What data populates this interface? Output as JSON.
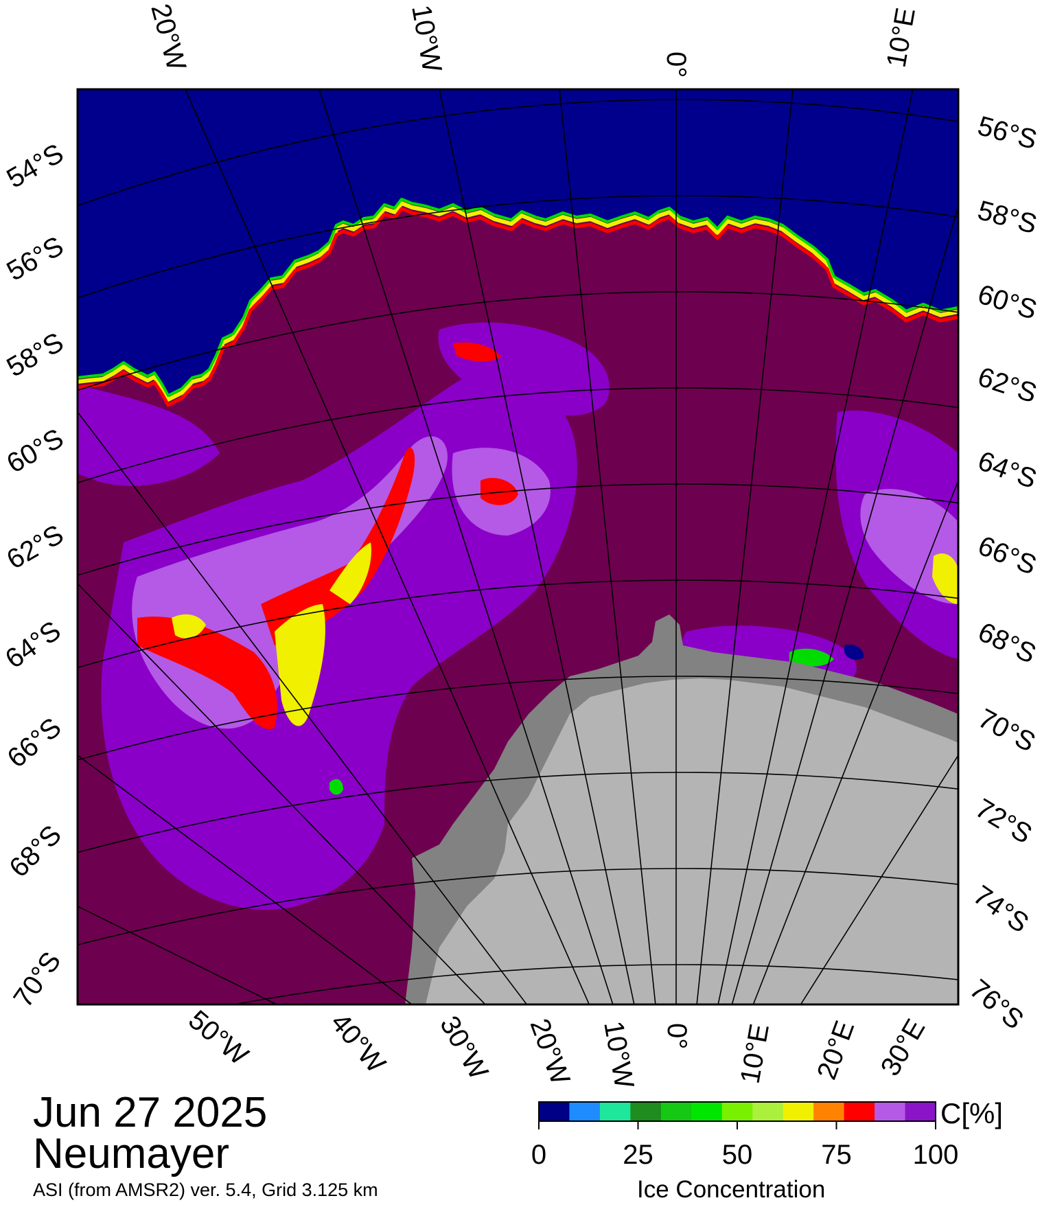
{
  "map": {
    "top_longitudes": [
      "20°W",
      "10°W",
      "0°",
      "10°E"
    ],
    "bottom_longitudes": [
      "50°W",
      "40°W",
      "30°W",
      "20°W",
      "10°W",
      "0°",
      "10°E",
      "20°E",
      "30°E"
    ],
    "left_latitudes": [
      "54°S",
      "56°S",
      "58°S",
      "60°S",
      "62°S",
      "64°S",
      "66°S",
      "68°S",
      "70°S"
    ],
    "right_latitudes": [
      "56°S",
      "58°S",
      "60°S",
      "62°S",
      "64°S",
      "66°S",
      "68°S",
      "70°S",
      "72°S",
      "74°S",
      "76°S"
    ],
    "colors": {
      "open_water": "#00008c",
      "consolidated_ice": "#6e0050",
      "high_ice": "#8a00c8",
      "mid_ice": "#b45ae6",
      "ice_edge": [
        "#00e6ff",
        "#00dc00",
        "#f0f000",
        "#ff0000"
      ],
      "land": "#b4b4b4",
      "ice_shelf": "#828282",
      "grid_line": "#000000"
    }
  },
  "legend": {
    "date": "Jun 27 2025",
    "station": "Neumayer",
    "product": "ASI (from AMSR2) ver. 5.4,  Grid 3.125 km",
    "colorbar": {
      "title": "Ice Concentration",
      "unit": "C[%]",
      "ticks": [
        "0",
        "25",
        "50",
        "75",
        "100"
      ],
      "colors": [
        "#000087",
        "#1e8cff",
        "#1ee69b",
        "#1e8c1e",
        "#14c814",
        "#00e600",
        "#78f000",
        "#aaf03c",
        "#f0f000",
        "#ff8200",
        "#ff0000",
        "#b45ae6",
        "#8c14c8"
      ]
    }
  }
}
